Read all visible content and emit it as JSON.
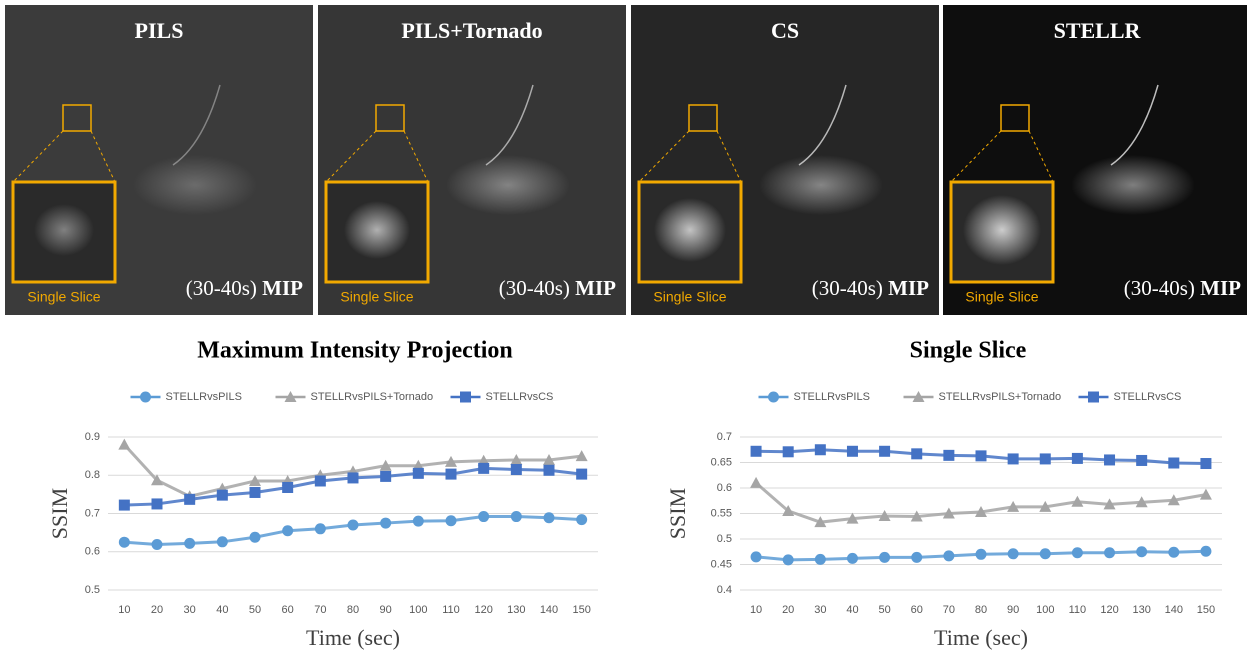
{
  "panels": [
    {
      "title": "PILS",
      "inset_label": "Single Slice",
      "window": "(30-40s)",
      "projection": "MIP"
    },
    {
      "title": "PILS+Tornado",
      "inset_label": "Single Slice",
      "window": "(30-40s)",
      "projection": "MIP"
    },
    {
      "title": "CS",
      "inset_label": "Single Slice",
      "window": "(30-40s)",
      "projection": "MIP"
    },
    {
      "title": "STELLR",
      "inset_label": "Single Slice",
      "window": "(30-40s)",
      "projection": "MIP"
    }
  ],
  "chart_data": [
    {
      "type": "line",
      "title": "Maximum Intensity Projection",
      "x_label": "Time (sec)",
      "y_label": "SSIM",
      "categories": [
        "10",
        "20",
        "30",
        "40",
        "50",
        "60",
        "70",
        "80",
        "90",
        "100",
        "110",
        "120",
        "130",
        "140",
        "150"
      ],
      "ylim": [
        0.5,
        0.9
      ],
      "yticks": [
        0.5,
        0.6,
        0.7,
        0.8,
        0.9
      ],
      "grid": true,
      "legend": "top",
      "series": [
        {
          "name": "STELLRvsPILS",
          "color": "#5b9bd5",
          "marker": "circle",
          "values": [
            0.625,
            0.619,
            0.622,
            0.626,
            0.638,
            0.655,
            0.66,
            0.67,
            0.675,
            0.68,
            0.681,
            0.692,
            0.692,
            0.689,
            0.684
          ]
        },
        {
          "name": "STELLRvsPILS+Tornado",
          "color": "#a5a5a5",
          "marker": "triangle",
          "values": [
            0.88,
            0.787,
            0.745,
            0.765,
            0.785,
            0.785,
            0.8,
            0.81,
            0.825,
            0.825,
            0.835,
            0.838,
            0.84,
            0.84,
            0.85
          ]
        },
        {
          "name": "STELLRvsCS",
          "color": "#4472c4",
          "marker": "square",
          "values": [
            0.722,
            0.725,
            0.737,
            0.748,
            0.755,
            0.768,
            0.785,
            0.793,
            0.797,
            0.805,
            0.803,
            0.818,
            0.815,
            0.813,
            0.803
          ]
        }
      ]
    },
    {
      "type": "line",
      "title": "Single Slice",
      "x_label": "Time (sec)",
      "y_label": "SSIM",
      "categories": [
        "10",
        "20",
        "30",
        "40",
        "50",
        "60",
        "70",
        "80",
        "90",
        "100",
        "110",
        "120",
        "130",
        "140",
        "150"
      ],
      "ylim": [
        0.4,
        0.7
      ],
      "yticks": [
        0.4,
        0.45,
        0.5,
        0.55,
        0.6,
        0.65,
        0.7
      ],
      "grid": true,
      "legend": "top",
      "series": [
        {
          "name": "STELLRvsPILS",
          "color": "#5b9bd5",
          "marker": "circle",
          "values": [
            0.465,
            0.459,
            0.46,
            0.462,
            0.464,
            0.464,
            0.467,
            0.47,
            0.471,
            0.471,
            0.473,
            0.473,
            0.475,
            0.474,
            0.476
          ]
        },
        {
          "name": "STELLRvsPILS+Tornado",
          "color": "#a5a5a5",
          "marker": "triangle",
          "values": [
            0.61,
            0.555,
            0.533,
            0.54,
            0.545,
            0.544,
            0.55,
            0.553,
            0.563,
            0.563,
            0.573,
            0.568,
            0.572,
            0.576,
            0.587
          ]
        },
        {
          "name": "STELLRvsCS",
          "color": "#4472c4",
          "marker": "square",
          "values": [
            0.672,
            0.671,
            0.675,
            0.672,
            0.672,
            0.667,
            0.664,
            0.663,
            0.657,
            0.657,
            0.658,
            0.655,
            0.654,
            0.649,
            0.648
          ]
        }
      ]
    }
  ]
}
